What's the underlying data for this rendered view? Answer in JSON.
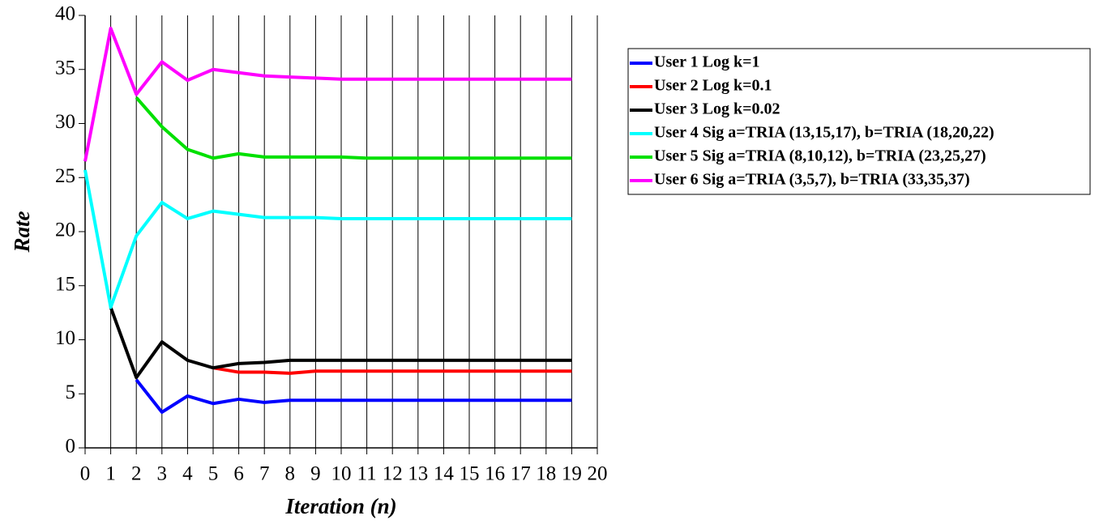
{
  "chart_data": {
    "type": "line",
    "xlabel": "Iteration (n)",
    "ylabel": "Rate",
    "x": [
      0,
      1,
      2,
      3,
      4,
      5,
      6,
      7,
      8,
      9,
      10,
      11,
      12,
      13,
      14,
      15,
      16,
      17,
      18,
      19
    ],
    "xlim": [
      0,
      20
    ],
    "xticks": [
      0,
      1,
      2,
      3,
      4,
      5,
      6,
      7,
      8,
      9,
      10,
      11,
      12,
      13,
      14,
      15,
      16,
      17,
      18,
      19,
      20
    ],
    "ylim": [
      0,
      40
    ],
    "yticks": [
      0,
      5,
      10,
      15,
      20,
      25,
      30,
      35,
      40
    ],
    "grid": true,
    "legend": "right",
    "series": [
      {
        "name": "User 1 Log k=1",
        "color": "#0000ff",
        "values": [
          null,
          null,
          6.3,
          3.3,
          4.8,
          4.1,
          4.5,
          4.2,
          4.4,
          4.4,
          4.4,
          4.4,
          4.4,
          4.4,
          4.4,
          4.4,
          4.4,
          4.4,
          4.4,
          4.4
        ]
      },
      {
        "name": "User 2 Log k=0.1",
        "color": "#ff0000",
        "values": [
          null,
          null,
          null,
          null,
          null,
          7.4,
          7.0,
          7.0,
          6.9,
          7.1,
          7.1,
          7.1,
          7.1,
          7.1,
          7.1,
          7.1,
          7.1,
          7.1,
          7.1,
          7.1
        ]
      },
      {
        "name": "User 3 Log k=0.02",
        "color": "#000000",
        "values": [
          null,
          13.0,
          6.5,
          9.8,
          8.1,
          7.4,
          7.8,
          7.9,
          8.1,
          8.1,
          8.1,
          8.1,
          8.1,
          8.1,
          8.1,
          8.1,
          8.1,
          8.1,
          8.1,
          8.1
        ]
      },
      {
        "name": "User 4 Sig a=TRIA (13,15,17), b=TRIA (18,20,22)",
        "color": "#00ffff",
        "values": [
          25.7,
          13.0,
          19.6,
          22.7,
          21.2,
          21.9,
          21.6,
          21.3,
          21.3,
          21.3,
          21.2,
          21.2,
          21.2,
          21.2,
          21.2,
          21.2,
          21.2,
          21.2,
          21.2,
          21.2
        ]
      },
      {
        "name": "User 5 Sig a=TRIA (8,10,12), b=TRIA (23,25,27)",
        "color": "#00e000",
        "values": [
          null,
          null,
          32.4,
          29.7,
          27.6,
          26.8,
          27.2,
          26.9,
          26.9,
          26.9,
          26.9,
          26.8,
          26.8,
          26.8,
          26.8,
          26.8,
          26.8,
          26.8,
          26.8,
          26.8
        ]
      },
      {
        "name": "User 6 Sig a=TRIA (3,5,7), b=TRIA (33,35,37)",
        "color": "#ff00ff",
        "values": [
          26.5,
          38.8,
          32.7,
          35.7,
          34.0,
          35.0,
          34.7,
          34.4,
          34.3,
          34.2,
          34.1,
          34.1,
          34.1,
          34.1,
          34.1,
          34.1,
          34.1,
          34.1,
          34.1,
          34.1
        ]
      }
    ]
  }
}
